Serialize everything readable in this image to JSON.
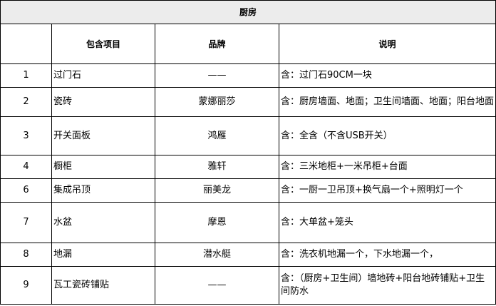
{
  "title": "厨房",
  "headers": [
    "",
    "包含项目",
    "品牌",
    "说明"
  ],
  "rows": [
    {
      "no": "1",
      "item": "过门石",
      "brand": "——",
      "desc": "含：过门石90CM一块"
    },
    {
      "no": "2",
      "item": "瓷砖",
      "brand": "蒙娜丽莎",
      "desc": "含：厨房墙面、地面；卫生间墙面、地面；阳台地面"
    },
    {
      "no": "3",
      "item": "开关面板",
      "brand": "鸿雁",
      "desc": "含：全含（不含USB开关）"
    },
    {
      "no": "4",
      "item": "橱柜",
      "brand": "雅轩",
      "desc": "含：三米地柜+一米吊柜+台面"
    },
    {
      "no": "6",
      "item": "集成吊顶",
      "brand": "丽美龙",
      "desc": "含：一厨一卫吊顶+换气扇一个+照明灯一个"
    },
    {
      "no": "7",
      "item": "水盆",
      "brand": "摩恩",
      "desc": "含：大单盆+笼头"
    },
    {
      "no": "8",
      "item": "地漏",
      "brand": "潜水艇",
      "desc": "含：洗衣机地漏一个，下水地漏一个，"
    },
    {
      "no": "9",
      "item": "瓦工瓷砖铺贴",
      "brand": "——",
      "desc": "含：（厨房+卫生间）墙地砖+阳台地砖铺贴+卫生间防水"
    }
  ]
}
